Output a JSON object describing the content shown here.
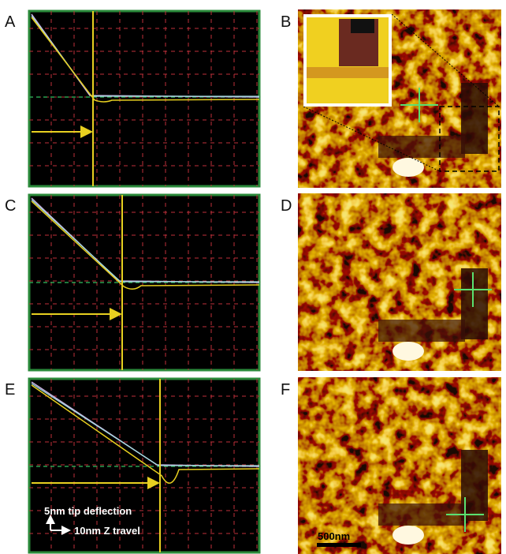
{
  "panels": [
    {
      "label": "A"
    },
    {
      "label": "B"
    },
    {
      "label": "C"
    },
    {
      "label": "D"
    },
    {
      "label": "E"
    },
    {
      "label": "F"
    }
  ],
  "scale_bars": {
    "deflection": "5nm tip deflection",
    "travel": "10nm Z travel",
    "length": "500nm"
  }
}
